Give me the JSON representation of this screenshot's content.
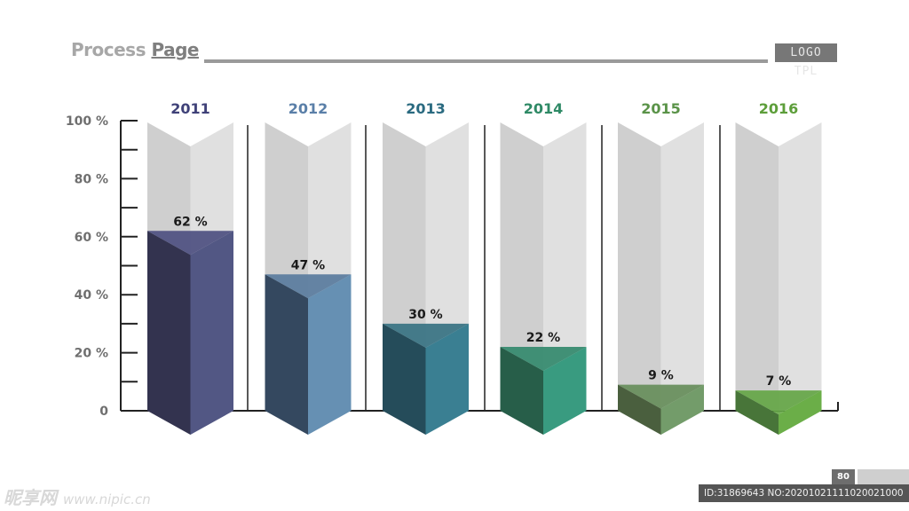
{
  "header": {
    "title_part1": "Process",
    "title_part2": "Page",
    "logo_text": "LOGO TPL"
  },
  "footer": {
    "page_number": "80",
    "watermark_left": "昵享网",
    "watermark_url": "www.nipic.cn",
    "watermark_right": "ID:31869643 NO:20201021111020021000"
  },
  "colors": {
    "background": "#ffffff",
    "track_left": "#cfcfcf",
    "track_right": "#e0e0e0",
    "axis": "#222222"
  },
  "chart_data": {
    "type": "bar",
    "title": "",
    "xlabel": "",
    "ylabel": "",
    "ylim": [
      0,
      100
    ],
    "yticks": [
      0,
      20,
      40,
      60,
      80,
      100
    ],
    "ytick_labels": [
      "0",
      "20 %",
      "40 %",
      "60 %",
      "80 %",
      "100 %"
    ],
    "categories": [
      "2011",
      "2012",
      "2013",
      "2014",
      "2015",
      "2016"
    ],
    "values": [
      62,
      47,
      30,
      22,
      9,
      7
    ],
    "value_labels": [
      "62 %",
      "47 %",
      "30 %",
      "22 %",
      "9 %",
      "7 %"
    ],
    "series_colors": [
      {
        "year": "#3f4178",
        "dark": "#33334f",
        "light": "#525784",
        "top": "#4a4d7e"
      },
      {
        "year": "#5a7fa8",
        "dark": "#34485f",
        "light": "#6690b3",
        "top": "#56799c"
      },
      {
        "year": "#2a6a80",
        "dark": "#254c5a",
        "light": "#3a7f92",
        "top": "#347081"
      },
      {
        "year": "#2f8a66",
        "dark": "#275e49",
        "light": "#399b80",
        "top": "#30876a"
      },
      {
        "year": "#5a9348",
        "dark": "#4a5f3e",
        "light": "#739c6a",
        "top": "#648c58"
      },
      {
        "year": "#5d9e3a",
        "dark": "#487539",
        "light": "#6bae48",
        "top": "#62a443"
      }
    ]
  }
}
